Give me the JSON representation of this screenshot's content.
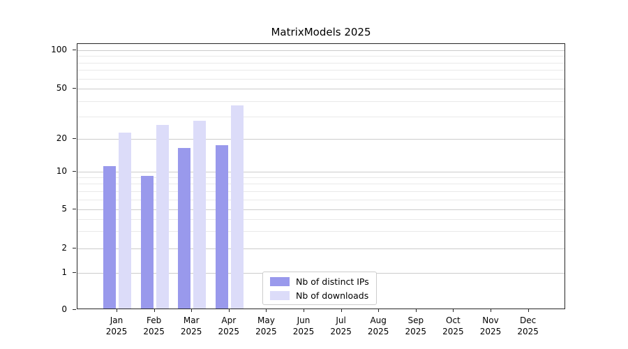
{
  "chart_data": {
    "type": "bar",
    "title": "MatrixModels 2025",
    "categories": [
      "Jan 2025",
      "Feb 2025",
      "Mar 2025",
      "Apr 2025",
      "May 2025",
      "Jun 2025",
      "Jul 2025",
      "Aug 2025",
      "Sep 2025",
      "Oct 2025",
      "Nov 2025",
      "Dec 2025"
    ],
    "x_axis": {
      "months": [
        "Jan",
        "Feb",
        "Mar",
        "Apr",
        "May",
        "Jun",
        "Jul",
        "Aug",
        "Sep",
        "Oct",
        "Nov",
        "Dec"
      ],
      "year": "2025"
    },
    "series": [
      {
        "name": "Nb of distinct IPs",
        "color": "#9999ec",
        "values": [
          11,
          9,
          16,
          17,
          null,
          null,
          null,
          null,
          null,
          null,
          null,
          null
        ]
      },
      {
        "name": "Nb of downloads",
        "color": "#dcdcf9",
        "values": [
          22,
          25,
          27,
          36,
          null,
          null,
          null,
          null,
          null,
          null,
          null,
          null
        ]
      }
    ],
    "y_axis": {
      "scale": "log",
      "ticks": [
        0,
        1,
        2,
        5,
        10,
        20,
        50,
        100
      ],
      "minor_ticks": [
        3,
        4,
        6,
        7,
        8,
        9,
        30,
        40,
        60,
        70,
        80,
        90
      ],
      "range": [
        0,
        100
      ]
    },
    "legend": {
      "position": "lower center"
    },
    "grid": "on"
  }
}
